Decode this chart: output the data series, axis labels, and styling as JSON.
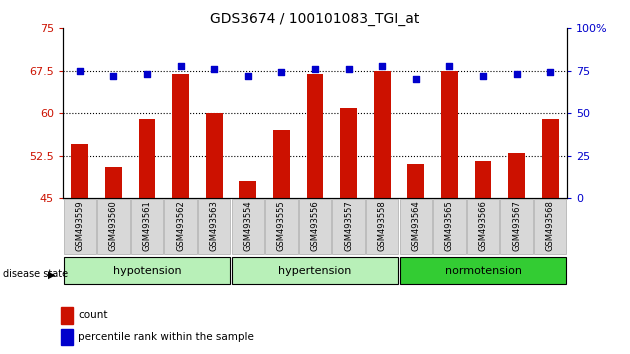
{
  "title": "GDS3674 / 100101083_TGI_at",
  "samples": [
    "GSM493559",
    "GSM493560",
    "GSM493561",
    "GSM493562",
    "GSM493563",
    "GSM493554",
    "GSM493555",
    "GSM493556",
    "GSM493557",
    "GSM493558",
    "GSM493564",
    "GSM493565",
    "GSM493566",
    "GSM493567",
    "GSM493568"
  ],
  "red_values": [
    54.5,
    50.5,
    59.0,
    67.0,
    60.0,
    48.0,
    57.0,
    67.0,
    61.0,
    67.5,
    51.0,
    67.5,
    51.5,
    53.0,
    59.0
  ],
  "blue_values": [
    75,
    72,
    73,
    78,
    76,
    72,
    74,
    76,
    76,
    78,
    70,
    78,
    72,
    73,
    74
  ],
  "groups": [
    {
      "label": "hypotension",
      "count": 5,
      "color": "#b8f0b8"
    },
    {
      "label": "hypertension",
      "count": 5,
      "color": "#b8f0b8"
    },
    {
      "label": "normotension",
      "count": 5,
      "color": "#33cc33"
    }
  ],
  "ylim_left": [
    45,
    75
  ],
  "ylim_right": [
    0,
    100
  ],
  "yticks_left": [
    45,
    52.5,
    60,
    67.5,
    75
  ],
  "ytick_labels_left": [
    "45",
    "52.5",
    "60",
    "67.5",
    "75"
  ],
  "yticks_right": [
    0,
    25,
    50,
    75,
    100
  ],
  "ytick_labels_right": [
    "0",
    "25",
    "50",
    "75",
    "100%"
  ],
  "bar_color": "#cc1100",
  "dot_color": "#0000cc",
  "bar_width": 0.5,
  "bar_bottom": 45,
  "legend_items": [
    "count",
    "percentile rank within the sample"
  ],
  "disease_state_label": "disease state",
  "background_color": "#ffffff",
  "tick_color_left": "#cc1100",
  "tick_color_right": "#0000cc",
  "figsize": [
    6.3,
    3.54
  ],
  "dpi": 100
}
